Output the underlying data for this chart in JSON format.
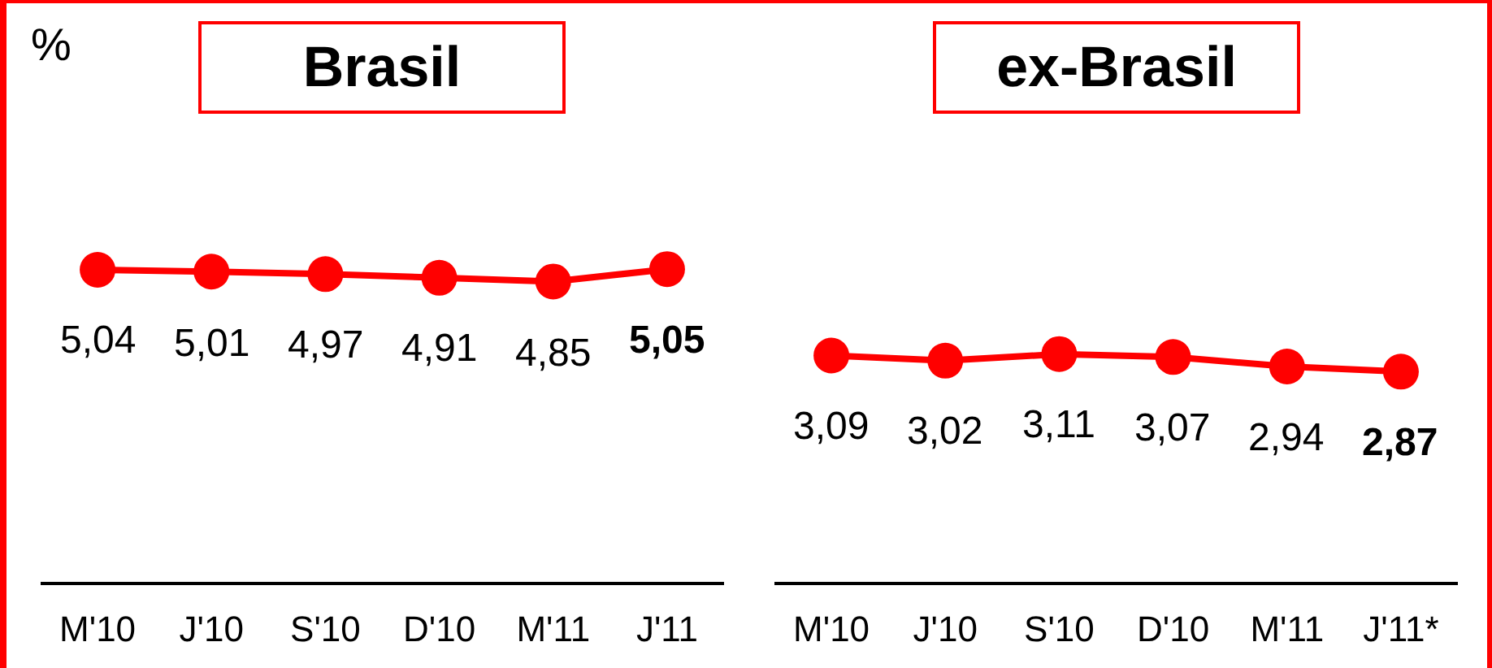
{
  "chart_data": [
    {
      "type": "line",
      "title": "Brasil",
      "ylabel": "%",
      "categories": [
        "M'10",
        "J'10",
        "S'10",
        "D'10",
        "M'11",
        "J'11"
      ],
      "series": [
        {
          "color": "#ff0000",
          "values": [
            5.04,
            5.01,
            4.97,
            4.91,
            4.85,
            5.05
          ],
          "value_labels": [
            "5,04",
            "5,01",
            "4,97",
            "4,91",
            "4,85",
            "5,05"
          ]
        }
      ],
      "marker": "circle",
      "line_style": "solid",
      "tick_labels": "x"
    },
    {
      "type": "line",
      "title": "ex-Brasil",
      "categories": [
        "M'10",
        "J'10",
        "S'10",
        "D'10",
        "M'11",
        "J'11*"
      ],
      "series": [
        {
          "color": "#ff0000",
          "values": [
            3.09,
            3.02,
            3.11,
            3.07,
            2.94,
            2.87
          ],
          "value_labels": [
            "3,09",
            "3,02",
            "3,11",
            "3,07",
            "2,94",
            "2,87"
          ]
        }
      ],
      "marker": "circle",
      "line_style": "solid",
      "tick_labels": "x"
    }
  ]
}
